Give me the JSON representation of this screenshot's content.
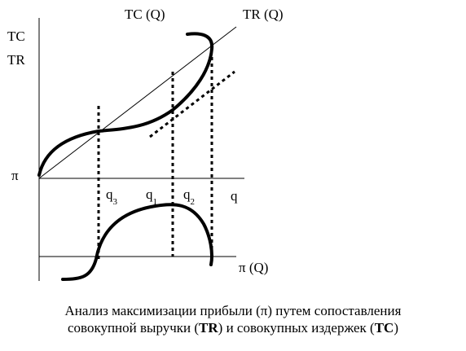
{
  "labels": {
    "tc_curve": "TC (Q)",
    "tr_curve": "TR (Q)",
    "y_axis_top": "TC",
    "y_axis_bottom": "TR",
    "profit_axis": "π",
    "x_axis": "q",
    "profit_curve": "π (Q)",
    "q3": {
      "base": "q",
      "sub": "3"
    },
    "q1": {
      "base": "q",
      "sub": "1"
    },
    "q2": {
      "base": "q",
      "sub": "2"
    }
  },
  "caption": {
    "line1": "Анализ максимизации прибыли (π) путем сопоставления",
    "line2_pre": "совокупной выручки (",
    "line2_tr": "TR",
    "line2_mid": ") и совокупных издержек (",
    "line2_tc": "TC",
    "line2_post": ")"
  }
}
